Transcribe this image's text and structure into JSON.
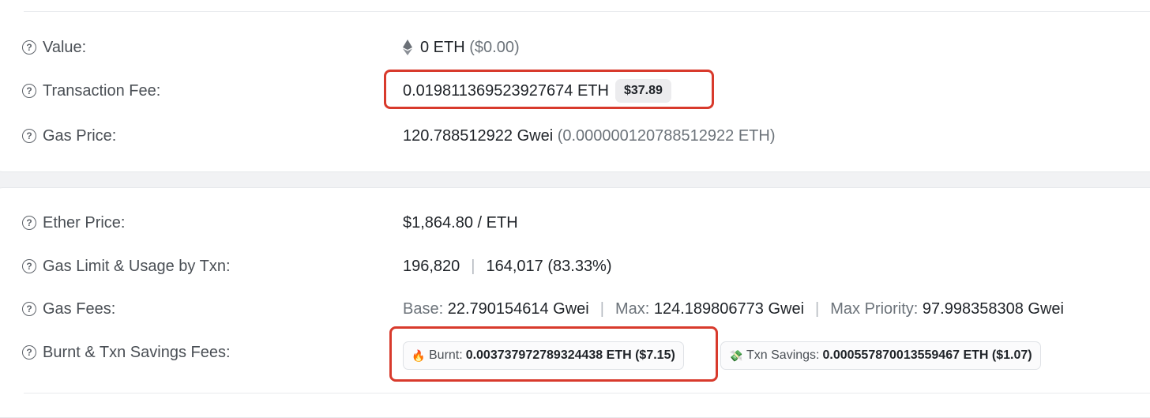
{
  "rows": {
    "value": {
      "label": "Value:",
      "amount": "0 ETH",
      "usd": "($0.00)"
    },
    "transaction_fee": {
      "label": "Transaction Fee:",
      "amount": "0.019811369523927674 ETH",
      "usd_chip": "$37.89"
    },
    "gas_price": {
      "label": "Gas Price:",
      "amount": "120.788512922 Gwei",
      "eth_equiv": "(0.000000120788512922 ETH)"
    },
    "ether_price": {
      "label": "Ether Price:",
      "amount": "$1,864.80 / ETH"
    },
    "gas_limit": {
      "label": "Gas Limit & Usage by Txn:",
      "limit": "196,820",
      "separator": "|",
      "usage": "164,017 (83.33%)"
    },
    "gas_fees": {
      "label": "Gas Fees:",
      "base_label": "Base:",
      "base_value": "22.790154614 Gwei",
      "max_label": "Max:",
      "max_value": "124.189806773 Gwei",
      "priority_label": "Max Priority:",
      "priority_value": "97.998358308 Gwei",
      "separator": "|"
    },
    "burnt_savings": {
      "label": "Burnt & Txn Savings Fees:",
      "burnt_label": "Burnt:",
      "burnt_value": "0.003737972789324438 ETH ($7.15)",
      "savings_label": "Txn Savings:",
      "savings_value": "0.000557870013559467 ETH ($1.07)"
    }
  },
  "icons": {
    "help": "question-circle-icon",
    "eth": "ethereum-icon",
    "burnt": "fire-icon",
    "savings": "money-icon"
  },
  "colors": {
    "highlight": "#d83a2c",
    "muted_text": "#6c737a",
    "chip_bg": "#ececee"
  }
}
